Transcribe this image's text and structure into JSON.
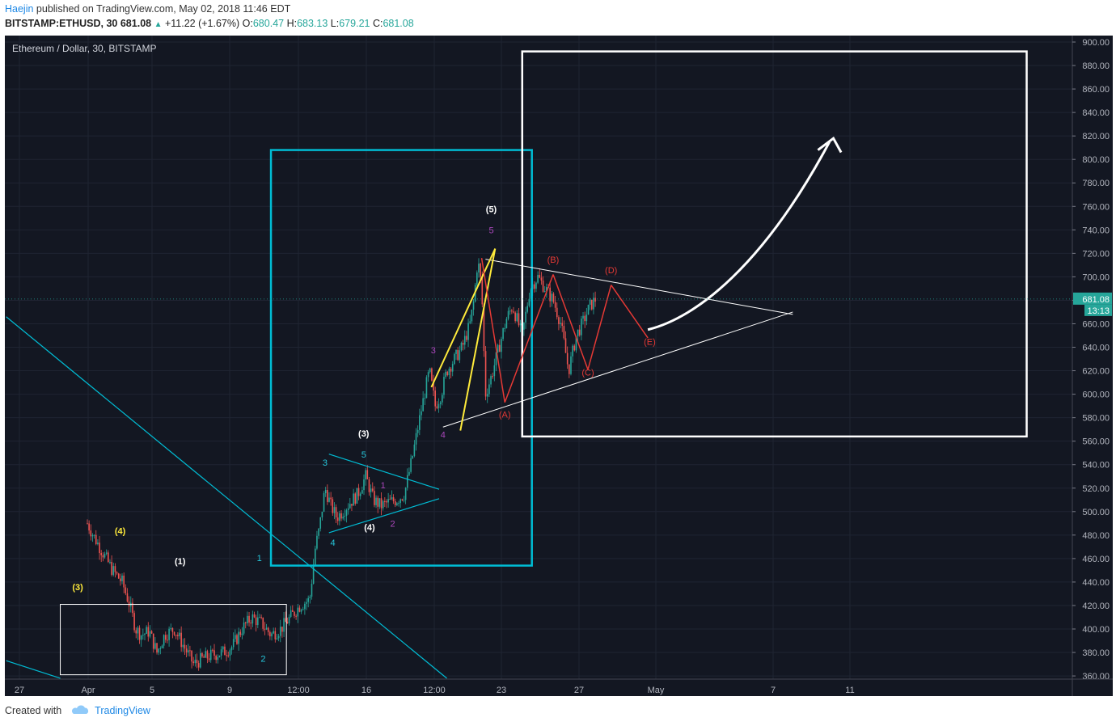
{
  "header": {
    "author": "Haejin",
    "published_text": "published on TradingView.com, May 02, 2018 11:46 EDT",
    "symbol": "BITSTAMP:ETHUSD, 30",
    "last": "681.08",
    "change": "+11.22 (+1.67%)",
    "o_label": "O:",
    "o_value": "680.47",
    "h_label": "H:",
    "h_value": "683.13",
    "l_label": "L:",
    "l_value": "679.21",
    "c_label": "C:",
    "c_value": "681.08"
  },
  "footer": {
    "created_with": "Created with",
    "brand": "TradingView"
  },
  "colors": {
    "background": "#131722",
    "up": "#26a69a",
    "down": "#ef5350",
    "cyan": "#00bcd4",
    "yellow": "#ffeb3b",
    "red": "#e53935",
    "purple": "#ab47bc",
    "price_tag": "#26a69a"
  },
  "chart_data": {
    "type": "candlestick",
    "title": "Ethereum / Dollar, 30, BITSTAMP",
    "y_axis": {
      "min": 360,
      "max": 900,
      "ticks": [
        "900.00",
        "880.00",
        "860.00",
        "840.00",
        "820.00",
        "800.00",
        "780.00",
        "760.00",
        "740.00",
        "720.00",
        "700.00",
        "680.00",
        "660.00",
        "640.00",
        "620.00",
        "600.00",
        "580.00",
        "560.00",
        "540.00",
        "520.00",
        "500.00",
        "480.00",
        "460.00",
        "440.00",
        "420.00",
        "400.00",
        "380.00",
        "360.00"
      ],
      "grid": true
    },
    "x_axis": {
      "ticks": [
        "27",
        "Apr",
        "5",
        "9",
        "12:00",
        "16",
        "12:00",
        "23",
        "27",
        "May",
        "7",
        "11"
      ]
    },
    "last_price": {
      "value": "681.08",
      "countdown": "13:13"
    },
    "price_path": [
      [
        0,
        490
      ],
      [
        0.3,
        480
      ],
      [
        0.8,
        465
      ],
      [
        1.3,
        450
      ],
      [
        1.8,
        440
      ],
      [
        2.2,
        420
      ],
      [
        2.5,
        400
      ],
      [
        2.8,
        395
      ],
      [
        3.2,
        398
      ],
      [
        3.6,
        380
      ],
      [
        4,
        395
      ],
      [
        4.5,
        400
      ],
      [
        5,
        385
      ],
      [
        5.5,
        370
      ],
      [
        6,
        375
      ],
      [
        6.5,
        378
      ],
      [
        7,
        380
      ],
      [
        7.5,
        385
      ],
      [
        8,
        400
      ],
      [
        8.5,
        410
      ],
      [
        9,
        405
      ],
      [
        9.5,
        395
      ],
      [
        10,
        400
      ],
      [
        10.5,
        410
      ],
      [
        11,
        420
      ],
      [
        11.5,
        425
      ],
      [
        11.8,
        470
      ],
      [
        12,
        485
      ],
      [
        12.3,
        520
      ],
      [
        12.6,
        505
      ],
      [
        12.9,
        495
      ],
      [
        13.2,
        500
      ],
      [
        13.6,
        508
      ],
      [
        14,
        515
      ],
      [
        14.4,
        530
      ],
      [
        14.8,
        510
      ],
      [
        15.2,
        505
      ],
      [
        15.6,
        508
      ],
      [
        16,
        510
      ],
      [
        16.4,
        515
      ],
      [
        16.8,
        545
      ],
      [
        17.2,
        580
      ],
      [
        17.5,
        605
      ],
      [
        17.7,
        620
      ],
      [
        18,
        590
      ],
      [
        18.3,
        600
      ],
      [
        18.6,
        620
      ],
      [
        19,
        630
      ],
      [
        19.4,
        640
      ],
      [
        19.8,
        660
      ],
      [
        20,
        680
      ],
      [
        20.2,
        715
      ],
      [
        20.4,
        690
      ],
      [
        20.6,
        600
      ],
      [
        20.9,
        615
      ],
      [
        21.3,
        640
      ],
      [
        21.7,
        665
      ],
      [
        22,
        675
      ],
      [
        22.5,
        650
      ],
      [
        22.9,
        690
      ],
      [
        23.3,
        700
      ],
      [
        23.7,
        690
      ],
      [
        24.1,
        680
      ],
      [
        24.5,
        660
      ],
      [
        24.9,
        620
      ],
      [
        25.3,
        650
      ],
      [
        25.6,
        660
      ],
      [
        26,
        675
      ],
      [
        26.3,
        681.08
      ]
    ],
    "annotations": {
      "wave_labels": [
        {
          "text": "(3)",
          "kind": "yellow",
          "d": -0.5,
          "p": 433
        },
        {
          "text": "(4)",
          "kind": "yellow",
          "d": 1.7,
          "p": 481
        },
        {
          "text": "(1)",
          "kind": "white",
          "d": 4.8,
          "p": 455
        },
        {
          "text": "1",
          "kind": "cyan",
          "d": 8.9,
          "p": 458
        },
        {
          "text": "2",
          "kind": "cyan",
          "d": 9.1,
          "p": 372
        },
        {
          "text": "3",
          "kind": "cyan",
          "d": 12.3,
          "p": 539
        },
        {
          "text": "4",
          "kind": "cyan",
          "d": 12.7,
          "p": 471
        },
        {
          "text": "5",
          "kind": "cyan",
          "d": 14.3,
          "p": 546
        },
        {
          "text": "(3)",
          "kind": "white",
          "d": 14.3,
          "p": 564
        },
        {
          "text": "(4)",
          "kind": "white",
          "d": 14.6,
          "p": 484
        },
        {
          "text": "1",
          "kind": "purple",
          "d": 15.3,
          "p": 520
        },
        {
          "text": "2",
          "kind": "purple",
          "d": 15.8,
          "p": 487
        },
        {
          "text": "3",
          "kind": "purple",
          "d": 17.9,
          "p": 635
        },
        {
          "text": "4",
          "kind": "purple",
          "d": 18.4,
          "p": 563
        },
        {
          "text": "5",
          "kind": "purple",
          "d": 20.9,
          "p": 737
        },
        {
          "text": "(5)",
          "kind": "white",
          "d": 20.9,
          "p": 755
        },
        {
          "text": "(A)",
          "kind": "red",
          "d": 21.6,
          "p": 580
        },
        {
          "text": "(B)",
          "kind": "red",
          "d": 24.1,
          "p": 712
        },
        {
          "text": "(C)",
          "kind": "red",
          "d": 25.9,
          "p": 616
        },
        {
          "text": "(D)",
          "kind": "red",
          "d": 27.1,
          "p": 703
        },
        {
          "text": "(E)",
          "kind": "red",
          "d": 29.1,
          "p": 642
        }
      ]
    }
  }
}
